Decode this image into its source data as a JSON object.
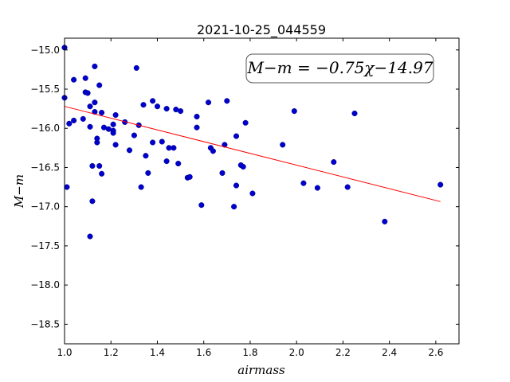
{
  "chart_data": {
    "type": "scatter",
    "title": "2021-10-25_044559",
    "xlabel": "airmass",
    "ylabel": "M−m",
    "xlim": [
      1.0,
      2.7
    ],
    "ylim": [
      -18.75,
      -14.85
    ],
    "y_inverted": true,
    "x_ticks": [
      "1.0",
      "1.2",
      "1.4",
      "1.6",
      "1.8",
      "2.0",
      "2.2",
      "2.4",
      "2.6"
    ],
    "y_ticks": [
      "−15.0",
      "−15.5",
      "−16.0",
      "−16.5",
      "−17.0",
      "−17.5",
      "−18.0",
      "−18.5"
    ],
    "annotation": "M−m = −0.75χ−14.97",
    "fit": {
      "slope": -0.75,
      "intercept": -14.97,
      "x_range": [
        1.0,
        2.62
      ],
      "color": "#ff0000"
    },
    "point_color": "#0000cc",
    "points": [
      [
        1.0,
        -14.97
      ],
      [
        1.0,
        -15.61
      ],
      [
        1.01,
        -16.75
      ],
      [
        1.02,
        -15.94
      ],
      [
        1.04,
        -15.38
      ],
      [
        1.04,
        -15.9
      ],
      [
        1.08,
        -15.88
      ],
      [
        1.09,
        -15.36
      ],
      [
        1.09,
        -15.54
      ],
      [
        1.1,
        -15.55
      ],
      [
        1.11,
        -15.72
      ],
      [
        1.11,
        -15.98
      ],
      [
        1.11,
        -17.38
      ],
      [
        1.12,
        -16.48
      ],
      [
        1.12,
        -16.93
      ],
      [
        1.13,
        -15.21
      ],
      [
        1.13,
        -15.79
      ],
      [
        1.13,
        -15.67
      ],
      [
        1.14,
        -16.18
      ],
      [
        1.14,
        -16.13
      ],
      [
        1.15,
        -16.48
      ],
      [
        1.15,
        -15.45
      ],
      [
        1.16,
        -16.58
      ],
      [
        1.16,
        -15.8
      ],
      [
        1.17,
        -15.99
      ],
      [
        1.19,
        -16.01
      ],
      [
        1.21,
        -15.95
      ],
      [
        1.21,
        -16.03
      ],
      [
        1.21,
        -16.06
      ],
      [
        1.22,
        -15.83
      ],
      [
        1.22,
        -16.21
      ],
      [
        1.26,
        -15.92
      ],
      [
        1.28,
        -16.28
      ],
      [
        1.3,
        -16.09
      ],
      [
        1.31,
        -15.23
      ],
      [
        1.32,
        -15.96
      ],
      [
        1.33,
        -16.75
      ],
      [
        1.34,
        -15.7
      ],
      [
        1.35,
        -16.35
      ],
      [
        1.36,
        -16.57
      ],
      [
        1.38,
        -15.65
      ],
      [
        1.38,
        -16.18
      ],
      [
        1.4,
        -15.72
      ],
      [
        1.42,
        -16.17
      ],
      [
        1.44,
        -15.75
      ],
      [
        1.44,
        -16.42
      ],
      [
        1.45,
        -16.25
      ],
      [
        1.47,
        -16.25
      ],
      [
        1.48,
        -15.76
      ],
      [
        1.49,
        -16.45
      ],
      [
        1.5,
        -15.78
      ],
      [
        1.53,
        -16.63
      ],
      [
        1.54,
        -16.62
      ],
      [
        1.57,
        -15.85
      ],
      [
        1.57,
        -15.99
      ],
      [
        1.59,
        -16.98
      ],
      [
        1.62,
        -15.67
      ],
      [
        1.63,
        -16.25
      ],
      [
        1.64,
        -16.29
      ],
      [
        1.68,
        -16.57
      ],
      [
        1.69,
        -16.21
      ],
      [
        1.7,
        -15.65
      ],
      [
        1.73,
        -17.0
      ],
      [
        1.74,
        -16.73
      ],
      [
        1.74,
        -16.1
      ],
      [
        1.76,
        -16.47
      ],
      [
        1.77,
        -16.49
      ],
      [
        1.78,
        -15.93
      ],
      [
        1.81,
        -16.83
      ],
      [
        1.94,
        -16.21
      ],
      [
        1.99,
        -15.78
      ],
      [
        2.03,
        -16.7
      ],
      [
        2.09,
        -16.76
      ],
      [
        2.16,
        -16.43
      ],
      [
        2.22,
        -16.75
      ],
      [
        2.25,
        -15.81
      ],
      [
        2.38,
        -17.19
      ],
      [
        2.62,
        -16.72
      ]
    ]
  }
}
